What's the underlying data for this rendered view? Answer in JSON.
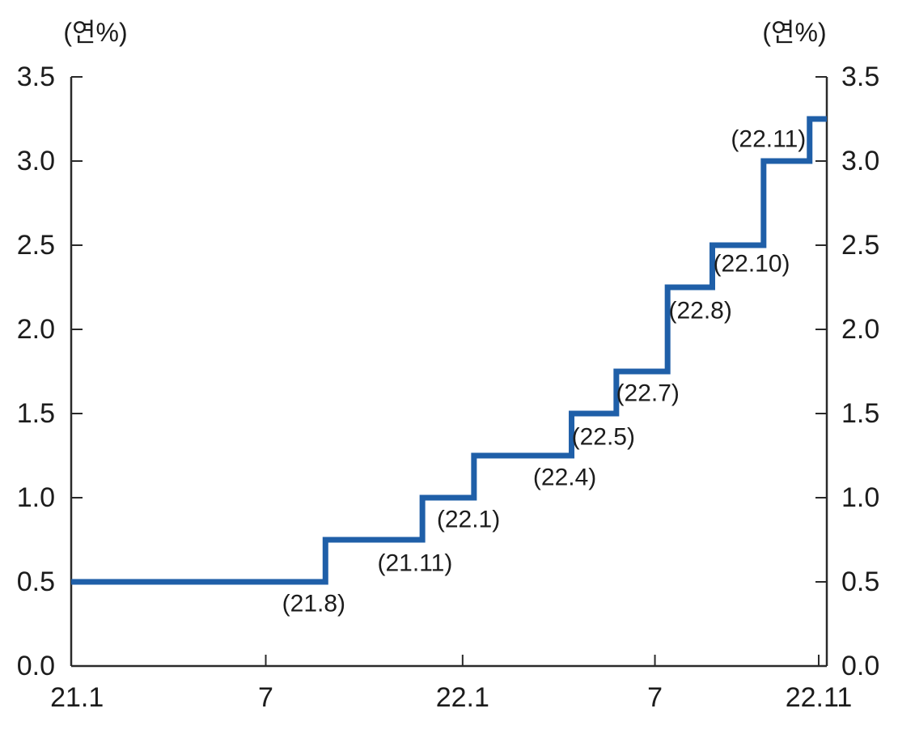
{
  "chart_data": {
    "type": "step",
    "unit_label": "(연%)",
    "line_color": "#1f5fa8",
    "axis_color": "#2a2a2a",
    "text_color": "#1c1c1c",
    "grid": false,
    "legend": "none",
    "y_axis": {
      "min": 0.0,
      "max": 3.5,
      "tick_step": 0.5,
      "tick_labels": [
        "0.0",
        "0.5",
        "1.0",
        "1.5",
        "2.0",
        "2.5",
        "3.0",
        "3.5"
      ],
      "sides": "both"
    },
    "x_axis": {
      "t_min": 0,
      "t_max": 23.3,
      "t_unit": "months-since-2021-01",
      "ticks": [
        {
          "label": "21.1",
          "t": 0.18,
          "has_tick": false
        },
        {
          "label": "7",
          "t": 6.0,
          "has_tick": true
        },
        {
          "label": "22.1",
          "t": 12.07,
          "has_tick": true
        },
        {
          "label": "7",
          "t": 18.0,
          "has_tick": true
        },
        {
          "label": "22.11",
          "t": 23.05,
          "has_tick": true
        }
      ]
    },
    "series": [
      {
        "start": {
          "t": 0.0,
          "value": 0.5
        },
        "end_t": 23.3,
        "changes": [
          {
            "label": "(21.8)",
            "t": 7.84,
            "to": 0.75,
            "label_t": 7.48,
            "label_v": 0.37
          },
          {
            "label": "(21.11)",
            "t": 10.83,
            "to": 1.0,
            "label_t": 10.6,
            "label_v": 0.61
          },
          {
            "label": "(22.1)",
            "t": 12.42,
            "to": 1.25,
            "label_t": 12.25,
            "label_v": 0.87
          },
          {
            "label": "(22.4)",
            "t": 15.43,
            "to": 1.5,
            "label_t": 15.22,
            "label_v": 1.12
          },
          {
            "label": "(22.5)",
            "t": 16.81,
            "to": 1.75,
            "label_t": 16.41,
            "label_v": 1.36
          },
          {
            "label": "(22.7)",
            "t": 18.39,
            "to": 2.25,
            "label_t": 17.78,
            "label_v": 1.62
          },
          {
            "label": "(22.8)",
            "t": 19.77,
            "to": 2.5,
            "label_t": 19.4,
            "label_v": 2.11
          },
          {
            "label": "(22.10)",
            "t": 21.35,
            "to": 3.0,
            "label_t": 20.98,
            "label_v": 2.39
          },
          {
            "label": "(22.11)",
            "t": 22.77,
            "to": 3.25,
            "label_t": 21.5,
            "label_v": 3.13
          }
        ]
      }
    ]
  }
}
